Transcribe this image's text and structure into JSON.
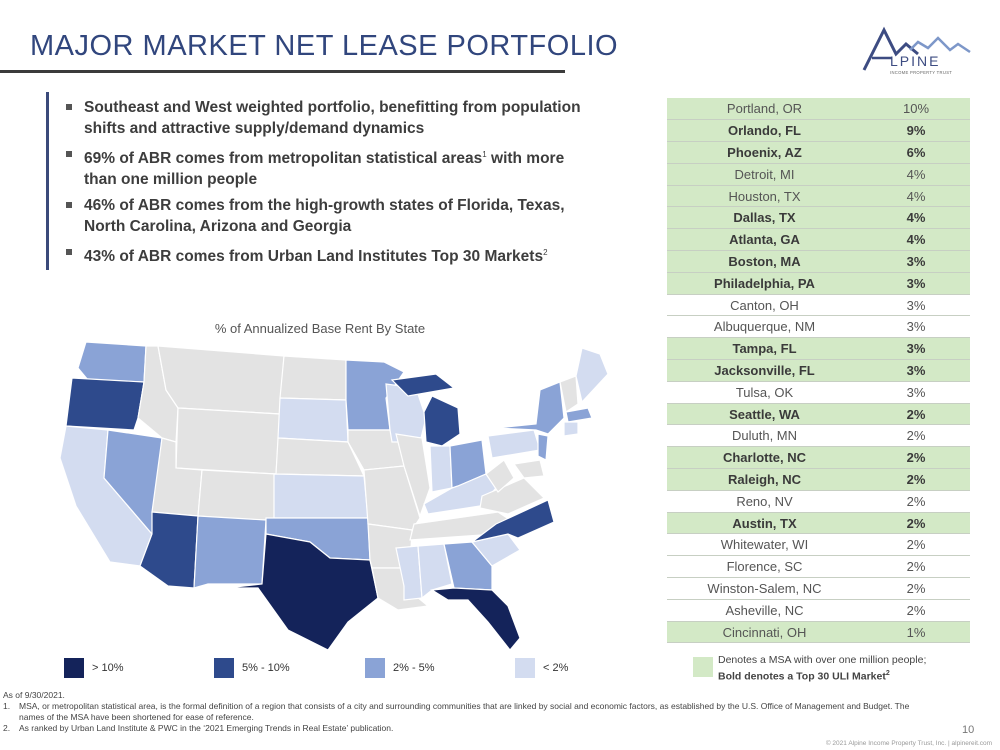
{
  "header": {
    "title": "MAJOR MARKET NET LEASE PORTFOLIO",
    "logo_text": "LPINE",
    "logo_letter": "A",
    "logo_subtitle": "INCOME PROPERTY TRUST"
  },
  "bullets": [
    {
      "text": "Southeast and West weighted portfolio, benefitting from population shifts and attractive supply/demand dynamics",
      "sup": ""
    },
    {
      "text": "69% of ABR comes from metropolitan statistical areas",
      "sup": "1",
      "after": " with more than one million people"
    },
    {
      "text": "46% of ABR comes from the high-growth states of Florida, Texas, North Carolina, Arizona and Georgia",
      "sup": ""
    },
    {
      "text": "43% of ABR comes from Urban Land Institutes Top 30 Markets",
      "sup": "2"
    }
  ],
  "map": {
    "title": "% of Annualized Base Rent By State",
    "colors": {
      "gt10": "#14235a",
      "5to10": "#2e4a8c",
      "2to5": "#8aa3d6",
      "lt2": "#d3dcf0",
      "none": "#e3e3e3",
      "border": "#ffffff"
    }
  },
  "legend": [
    {
      "label": "> 10%",
      "color": "#14235a"
    },
    {
      "label": "5% - 10%",
      "color": "#2e4a8c"
    },
    {
      "label": "2% - 5%",
      "color": "#8aa3d6"
    },
    {
      "label": "< 2%",
      "color": "#d3dcf0"
    }
  ],
  "msa_table": [
    {
      "name": "Portland, OR",
      "pct": "10%",
      "large": true,
      "bold": false
    },
    {
      "name": "Orlando, FL",
      "pct": "9%",
      "large": true,
      "bold": true
    },
    {
      "name": "Phoenix, AZ",
      "pct": "6%",
      "large": true,
      "bold": true
    },
    {
      "name": "Detroit, MI",
      "pct": "4%",
      "large": true,
      "bold": false
    },
    {
      "name": "Houston, TX",
      "pct": "4%",
      "large": true,
      "bold": false
    },
    {
      "name": "Dallas, TX",
      "pct": "4%",
      "large": true,
      "bold": true
    },
    {
      "name": "Atlanta, GA",
      "pct": "4%",
      "large": true,
      "bold": true
    },
    {
      "name": "Boston, MA",
      "pct": "3%",
      "large": true,
      "bold": true
    },
    {
      "name": "Philadelphia, PA",
      "pct": "3%",
      "large": true,
      "bold": true
    },
    {
      "name": "Canton, OH",
      "pct": "3%",
      "large": false,
      "bold": false
    },
    {
      "name": "Albuquerque, NM",
      "pct": "3%",
      "large": false,
      "bold": false
    },
    {
      "name": "Tampa, FL",
      "pct": "3%",
      "large": true,
      "bold": true
    },
    {
      "name": "Jacksonville, FL",
      "pct": "3%",
      "large": true,
      "bold": true
    },
    {
      "name": "Tulsa, OK",
      "pct": "3%",
      "large": false,
      "bold": false
    },
    {
      "name": "Seattle, WA",
      "pct": "2%",
      "large": true,
      "bold": true
    },
    {
      "name": "Duluth, MN",
      "pct": "2%",
      "large": false,
      "bold": false
    },
    {
      "name": "Charlotte, NC",
      "pct": "2%",
      "large": true,
      "bold": true
    },
    {
      "name": "Raleigh, NC",
      "pct": "2%",
      "large": true,
      "bold": true
    },
    {
      "name": "Reno, NV",
      "pct": "2%",
      "large": false,
      "bold": false
    },
    {
      "name": "Austin, TX",
      "pct": "2%",
      "large": true,
      "bold": true
    },
    {
      "name": "Whitewater, WI",
      "pct": "2%",
      "large": false,
      "bold": false
    },
    {
      "name": "Florence, SC",
      "pct": "2%",
      "large": false,
      "bold": false
    },
    {
      "name": "Winston-Salem, NC",
      "pct": "2%",
      "large": false,
      "bold": false
    },
    {
      "name": "Asheville, NC",
      "pct": "2%",
      "large": false,
      "bold": false
    },
    {
      "name": "Cincinnati, OH",
      "pct": "1%",
      "large": true,
      "bold": false
    }
  ],
  "table_note": {
    "line1": "Denotes a MSA with over one million people;",
    "line2": "Bold denotes a Top 30 ULI Market",
    "sup": "2",
    "color": "#d3e9c6"
  },
  "footnotes": {
    "asof": "As of 9/30/2021.",
    "items": [
      {
        "num": "1.",
        "text": "MSA, or metropolitan statistical area, is the formal definition of a region that consists of a city and surrounding communities that are linked by social and economic factors, as established by the U.S. Office of Management and Budget. The names of the MSA have been shortened for ease of reference."
      },
      {
        "num": "2.",
        "text": "As ranked by Urban Land Institute & PWC in the ‘2021 Emerging Trends in Real Estate’ publication."
      }
    ]
  },
  "footer": {
    "page_number": "10",
    "copyright": "© 2021 Alpine Income Property Trust, Inc.  |  alpinereit.com"
  }
}
